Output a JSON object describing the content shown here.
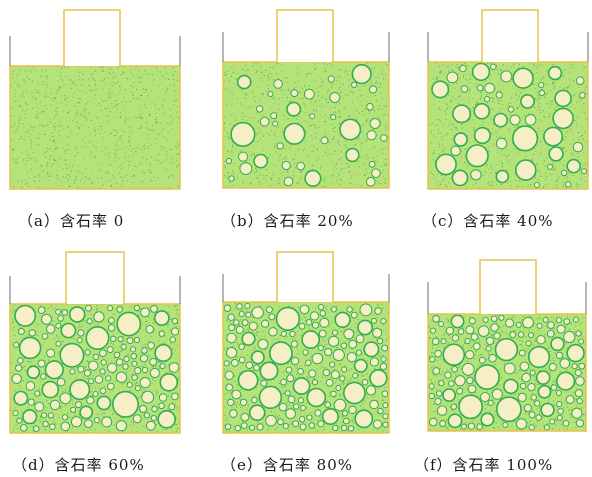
{
  "figure": {
    "colors": {
      "frame": "#e7c14a",
      "wall": "#7a7a7a",
      "matrix": "#b6e27a",
      "matrix_dot": "#2e9a48",
      "stone_fill": "#f6efc6",
      "stone_edge": "#2fae52"
    },
    "panels": [
      {
        "id": "a",
        "caption": "（a）含石率 0",
        "stone_content": 0
      },
      {
        "id": "b",
        "caption": "（b）含石率 20%",
        "stone_content": 0.2
      },
      {
        "id": "c",
        "caption": "（c）含石率 40%",
        "stone_content": 0.4
      },
      {
        "id": "d",
        "caption": "（d）含石率 60%",
        "stone_content": 0.6
      },
      {
        "id": "e",
        "caption": "（e）含石率 80%",
        "stone_content": 0.8
      },
      {
        "id": "f",
        "caption": "（f）含石率 100%",
        "stone_content": 1.0
      }
    ]
  }
}
